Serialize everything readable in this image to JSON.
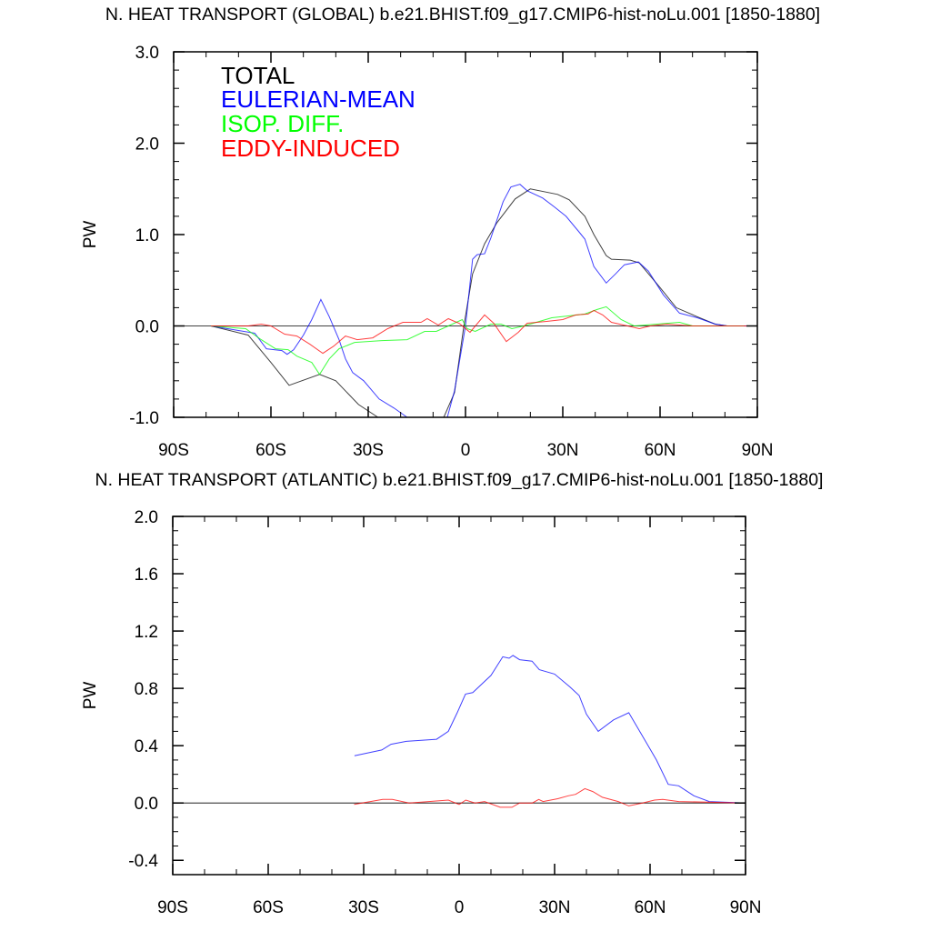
{
  "chart_data": [
    {
      "type": "line",
      "title": "N. HEAT TRANSPORT (GLOBAL) b.e21.BHIST.f09_g17.CMIP6-hist-noLu.001 [1850-1880]",
      "xlabel": "",
      "ylabel": "PW",
      "xlim": [
        -90,
        90
      ],
      "ylim": [
        -1.0,
        3.0
      ],
      "xticks": [
        -90,
        -60,
        -30,
        0,
        30,
        60,
        90
      ],
      "xtick_labels": [
        "90S",
        "60S",
        "30S",
        "0",
        "30N",
        "60N",
        "90N"
      ],
      "yticks": [
        -1.0,
        0.0,
        1.0,
        2.0,
        3.0
      ],
      "ytick_labels": [
        "-1.0",
        "0.0",
        "1.0",
        "2.0",
        "3.0"
      ],
      "y_minor_step": 0.2,
      "x_minor_step": 10,
      "legend_position": "top-left",
      "grid": false,
      "series": [
        {
          "name": "TOTAL",
          "color": "#000000",
          "x": [
            -78.5,
            -67,
            -60,
            -54.4,
            -45,
            -40,
            -33,
            -27,
            -22,
            -15,
            -10,
            -6.7,
            -3.4,
            -0.5,
            2.2,
            5.9,
            9.7,
            15.3,
            20,
            28.4,
            32,
            36.8,
            39.6,
            43.4,
            45,
            50.8,
            53.6,
            60,
            65,
            71.5,
            77,
            80.7,
            90
          ],
          "y": [
            0,
            -0.1,
            -0.4,
            -0.65,
            -0.53,
            -0.6,
            -0.86,
            -1.0,
            -1.15,
            -1.3,
            -1.2,
            -1.0,
            -0.73,
            0,
            0.57,
            0.9,
            1.13,
            1.39,
            1.5,
            1.44,
            1.38,
            1.2,
            1.0,
            0.77,
            0.73,
            0.72,
            0.69,
            0.42,
            0.2,
            0.1,
            0.02,
            0,
            0
          ]
        },
        {
          "name": "EULERIAN-MEAN",
          "color": "#0000ff",
          "x": [
            -78.5,
            -65,
            -61.4,
            -56.6,
            -55,
            -53,
            -50,
            -47.4,
            -44.6,
            -42,
            -39,
            -37,
            -34.8,
            -31.4,
            -26.6,
            -22,
            -18,
            -13,
            -9,
            -5.6,
            -3.4,
            0,
            2.2,
            3.6,
            5.9,
            7.8,
            11.6,
            14,
            16.8,
            19,
            23.8,
            27.5,
            31,
            35,
            36.8,
            39.6,
            43.4,
            46.3,
            49,
            53.3,
            56.4,
            61,
            66,
            71.5,
            77,
            80.7,
            90
          ],
          "y": [
            0,
            -0.08,
            -0.25,
            -0.27,
            -0.31,
            -0.26,
            -0.1,
            0.07,
            0.29,
            0.1,
            -0.15,
            -0.36,
            -0.51,
            -0.6,
            -0.8,
            -0.9,
            -1.0,
            -1.15,
            -1.15,
            -1.0,
            -0.71,
            0,
            0.73,
            0.78,
            0.79,
            0.96,
            1.36,
            1.52,
            1.55,
            1.48,
            1.4,
            1.3,
            1.2,
            1.03,
            0.95,
            0.65,
            0.47,
            0.57,
            0.67,
            0.7,
            0.6,
            0.34,
            0.14,
            0.09,
            0.02,
            0,
            0
          ]
        },
        {
          "name": "ISOP. DIFF.",
          "color": "#00ff00",
          "x": [
            -78.5,
            -67.8,
            -63,
            -58.6,
            -54.7,
            -52,
            -47.4,
            -45,
            -42,
            -39,
            -34.2,
            -25.8,
            -18,
            -12.6,
            -9,
            -5.3,
            -1,
            0.5,
            3,
            7.8,
            11,
            14.3,
            18,
            22.8,
            26.6,
            32,
            36.8,
            40.6,
            43.4,
            48,
            52,
            66,
            70,
            86
          ],
          "y": [
            0,
            -0.03,
            -0.15,
            -0.25,
            -0.26,
            -0.33,
            -0.4,
            -0.53,
            -0.36,
            -0.25,
            -0.18,
            -0.16,
            -0.15,
            -0.06,
            -0.06,
            0,
            0.07,
            -0.03,
            -0.06,
            0.02,
            0.02,
            -0.03,
            0,
            0.05,
            0.09,
            0.11,
            0.13,
            0.18,
            0.21,
            0.07,
            0,
            0.04,
            0,
            0
          ]
        },
        {
          "name": "EDDY-INDUCED",
          "color": "#ff0000",
          "x": [
            -78.5,
            -67,
            -63,
            -60,
            -55.8,
            -52,
            -48,
            -44,
            -40.6,
            -37,
            -33.4,
            -28.6,
            -24,
            -19.3,
            -13.7,
            -11.8,
            -8.4,
            -5.3,
            -3.4,
            -2,
            1.4,
            5.9,
            8.7,
            12.6,
            16.3,
            19,
            25,
            30,
            34,
            37.8,
            39.6,
            42.3,
            45,
            50,
            53.6,
            57,
            62,
            70,
            90
          ],
          "y": [
            0,
            0,
            0.02,
            0,
            -0.09,
            -0.11,
            -0.2,
            -0.3,
            -0.22,
            -0.11,
            -0.15,
            -0.13,
            -0.03,
            0.04,
            0.04,
            0.08,
            0.01,
            0.08,
            0.05,
            0.03,
            -0.07,
            0.12,
            0.03,
            -0.17,
            -0.07,
            0.03,
            0.05,
            0.07,
            0.12,
            0.13,
            0.17,
            0.12,
            0.04,
            0,
            -0.03,
            0,
            0.02,
            0,
            0
          ]
        }
      ]
    },
    {
      "type": "line",
      "title": "N. HEAT TRANSPORT (ATLANTIC) b.e21.BHIST.f09_g17.CMIP6-hist-noLu.001 [1850-1880]",
      "xlabel": "",
      "ylabel": "PW",
      "xlim": [
        -90,
        90
      ],
      "ylim": [
        -0.5,
        2.0
      ],
      "xticks": [
        -90,
        -60,
        -30,
        0,
        30,
        60,
        90
      ],
      "xtick_labels": [
        "90S",
        "60S",
        "30S",
        "0",
        "30N",
        "60N",
        "90N"
      ],
      "yticks": [
        -0.4,
        0.0,
        0.4,
        0.8,
        1.2,
        1.6,
        2.0
      ],
      "ytick_labels": [
        "-0.4",
        "0.0",
        "0.4",
        "0.8",
        "1.2",
        "1.6",
        "2.0"
      ],
      "y_minor_step": 0.1,
      "x_minor_step": 10,
      "grid": false,
      "series": [
        {
          "color": "#0000ff",
          "x": [
            -32.9,
            -24.3,
            -21.4,
            -16.6,
            -7.1,
            -3.4,
            -0.6,
            2,
            4.3,
            10,
            13.7,
            15.7,
            16.9,
            19,
            22.9,
            25.2,
            30,
            34.8,
            37.7,
            40,
            43.7,
            48.5,
            53.3,
            59.4,
            62,
            65.7,
            69,
            73.8,
            78.6,
            90
          ],
          "y": [
            0.33,
            0.37,
            0.41,
            0.43,
            0.445,
            0.5,
            0.63,
            0.76,
            0.77,
            0.89,
            1.02,
            1.01,
            1.03,
            1.0,
            0.99,
            0.93,
            0.9,
            0.81,
            0.75,
            0.62,
            0.5,
            0.58,
            0.63,
            0.4,
            0.3,
            0.13,
            0.12,
            0.05,
            0.01,
            0
          ]
        },
        {
          "color": "#ff0000",
          "x": [
            -33,
            -24,
            -21,
            -15.7,
            -3.4,
            0,
            2.1,
            5,
            8,
            12.9,
            16.6,
            19,
            23,
            25,
            26.4,
            31,
            34.3,
            36.6,
            39.5,
            42,
            45,
            50,
            53.3,
            57.6,
            61.4,
            64,
            69,
            90
          ],
          "y": [
            -0.01,
            0.025,
            0.025,
            0,
            0.02,
            -0.01,
            0.02,
            0,
            0.01,
            -0.03,
            -0.03,
            0,
            0,
            0.025,
            0.01,
            0.03,
            0.05,
            0.06,
            0.1,
            0.08,
            0.04,
            0.01,
            -0.02,
            0,
            0.02,
            0.025,
            0.01,
            0
          ]
        }
      ]
    }
  ]
}
